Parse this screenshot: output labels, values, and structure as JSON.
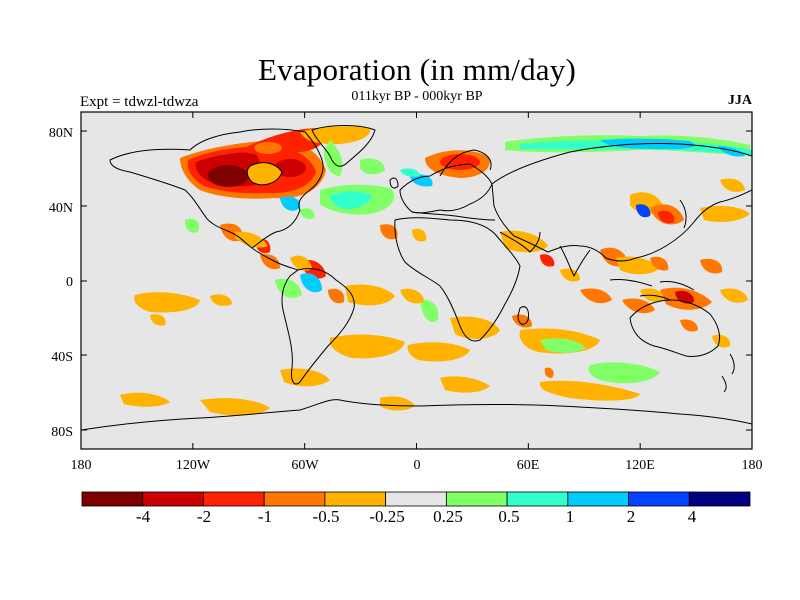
{
  "header": {
    "title": "Evaporation (in mm/day)",
    "subtitle": "011kyr BP - 000kyr BP",
    "left_label": "Expt = tdwzl-tdwza",
    "right_label": "JJA"
  },
  "axes": {
    "x_ticks": [
      "180",
      "120W",
      "60W",
      "0",
      "60E",
      "120E",
      "180"
    ],
    "y_ticks": [
      "80N",
      "40N",
      "0",
      "40S",
      "80S"
    ]
  },
  "colorbar": {
    "colors": [
      "#7f0000",
      "#cc0000",
      "#ff2200",
      "#ff7700",
      "#ffb300",
      "#e6e6e6",
      "#80ff66",
      "#33ffcc",
      "#00ccff",
      "#0044ff",
      "#000080"
    ],
    "labels": [
      "-4",
      "-2",
      "-1",
      "-0.5",
      "-0.25",
      "0.25",
      "0.5",
      "1",
      "2",
      "4"
    ]
  },
  "map": {
    "background_color": "#e6e6e6",
    "projection": "equirectangular",
    "lon_range": [
      -180,
      180
    ],
    "lat_range": [
      -90,
      90
    ]
  }
}
